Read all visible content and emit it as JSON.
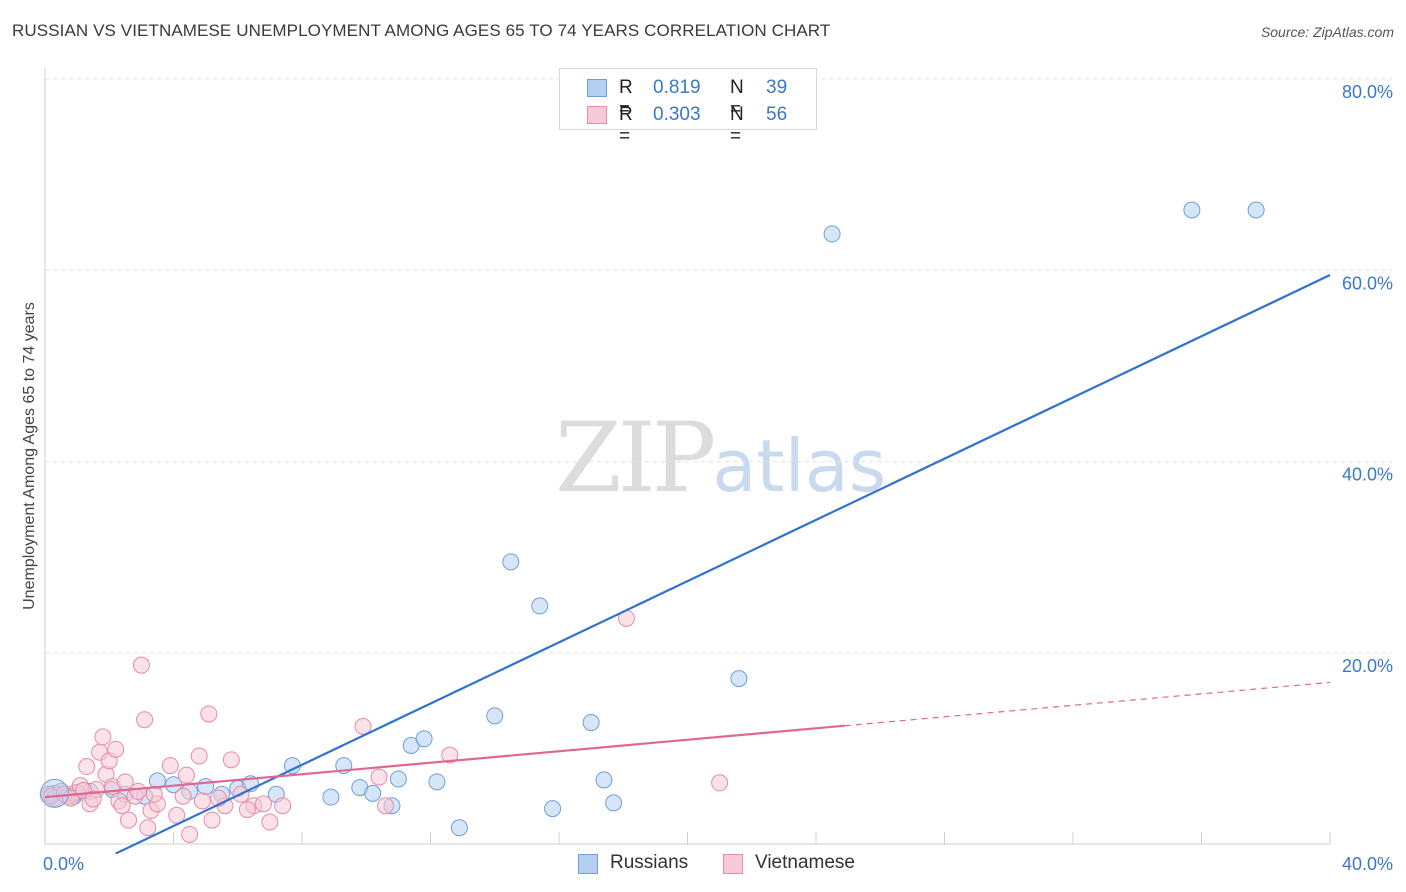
{
  "header": {
    "title": "RUSSIAN VS VIETNAMESE UNEMPLOYMENT AMONG AGES 65 TO 74 YEARS CORRELATION CHART",
    "source": "Source: ZipAtlas.com"
  },
  "watermark": {
    "zip": "ZIP",
    "atlas": "atlas"
  },
  "stats": [
    {
      "label": "R = ",
      "r": "0.819",
      "n_label": "N = ",
      "n": "39",
      "color": "#a8c8f0",
      "stroke": "#6f9fd8"
    },
    {
      "label": "R = ",
      "r": "0.303",
      "n_label": "N = ",
      "n": "56",
      "color": "#f8c0d0",
      "stroke": "#e88aa8"
    }
  ],
  "legend": {
    "russians": "Russians",
    "vietnamese": "Vietnamese"
  },
  "chart_data": {
    "type": "scatter",
    "title": "RUSSIAN VS VIETNAMESE UNEMPLOYMENT AMONG AGES 65 TO 74 YEARS CORRELATION CHART",
    "xlabel": "",
    "ylabel": "Unemployment Among Ages 65 to 74 years",
    "xlim": [
      0,
      40
    ],
    "ylim": [
      0,
      80
    ],
    "x_tick_labels": [
      "0.0%",
      "40.0%"
    ],
    "y_tick_labels": [
      "20.0%",
      "40.0%",
      "60.0%",
      "80.0%"
    ],
    "y_tick_values": [
      20,
      40,
      60,
      80
    ],
    "series": [
      {
        "name": "Russians",
        "color": "#6f9fd8",
        "fill": "#b5cff0",
        "trend_color": "#2f72d0",
        "trend": {
          "x0": 2.2,
          "y0": -1.0,
          "x1": 40.0,
          "y1": 59.5,
          "dashed_from": null
        },
        "points": [
          [
            0.2,
            5.2
          ],
          [
            0.5,
            5.5
          ],
          [
            0.9,
            5.0
          ],
          [
            1.4,
            5.5
          ],
          [
            2.1,
            5.7
          ],
          [
            2.5,
            5.2
          ],
          [
            3.1,
            5.0
          ],
          [
            3.5,
            6.6
          ],
          [
            4.0,
            6.2
          ],
          [
            4.5,
            5.5
          ],
          [
            5.0,
            6.0
          ],
          [
            5.5,
            5.2
          ],
          [
            6.0,
            5.8
          ],
          [
            6.4,
            6.3
          ],
          [
            7.2,
            5.2
          ],
          [
            7.7,
            8.2
          ],
          [
            8.9,
            4.9
          ],
          [
            9.3,
            8.2
          ],
          [
            9.8,
            5.9
          ],
          [
            10.2,
            5.3
          ],
          [
            10.8,
            4.0
          ],
          [
            11.0,
            6.8
          ],
          [
            11.4,
            10.3
          ],
          [
            11.8,
            11.0
          ],
          [
            12.2,
            6.5
          ],
          [
            12.9,
            1.7
          ],
          [
            14.0,
            13.4
          ],
          [
            14.5,
            29.5
          ],
          [
            15.4,
            24.9
          ],
          [
            15.8,
            3.7
          ],
          [
            17.0,
            12.7
          ],
          [
            17.4,
            6.7
          ],
          [
            17.7,
            4.3
          ],
          [
            21.6,
            17.3
          ],
          [
            24.5,
            63.8
          ],
          [
            35.7,
            66.3
          ],
          [
            37.7,
            66.3
          ],
          [
            0.3,
            5.3
          ],
          [
            1.0,
            5.4
          ]
        ]
      },
      {
        "name": "Vietnamese",
        "color": "#e88aa8",
        "fill": "#f8c9d6",
        "trend_color": "#e06890",
        "trend": {
          "x0": 0.0,
          "y0": 4.9,
          "x1": 40.0,
          "y1": 16.9,
          "dashed_from": 24.9
        },
        "points": [
          [
            0.1,
            5.2
          ],
          [
            0.3,
            4.8
          ],
          [
            0.5,
            5.5
          ],
          [
            0.7,
            5.0
          ],
          [
            0.9,
            5.3
          ],
          [
            1.1,
            6.1
          ],
          [
            1.3,
            8.1
          ],
          [
            1.4,
            4.2
          ],
          [
            1.6,
            5.7
          ],
          [
            1.7,
            9.6
          ],
          [
            1.8,
            11.2
          ],
          [
            1.9,
            7.3
          ],
          [
            2.0,
            8.7
          ],
          [
            2.1,
            6.0
          ],
          [
            2.2,
            9.9
          ],
          [
            2.3,
            4.5
          ],
          [
            2.4,
            4.0
          ],
          [
            2.6,
            2.5
          ],
          [
            2.8,
            5.0
          ],
          [
            2.9,
            5.5
          ],
          [
            3.0,
            18.7
          ],
          [
            3.1,
            13.0
          ],
          [
            3.2,
            1.7
          ],
          [
            3.3,
            3.5
          ],
          [
            3.5,
            4.2
          ],
          [
            3.9,
            8.2
          ],
          [
            4.1,
            3.0
          ],
          [
            4.3,
            5.0
          ],
          [
            4.4,
            7.2
          ],
          [
            4.5,
            1.0
          ],
          [
            4.8,
            9.2
          ],
          [
            4.9,
            4.5
          ],
          [
            5.1,
            13.6
          ],
          [
            5.2,
            2.5
          ],
          [
            5.6,
            4.0
          ],
          [
            5.8,
            8.8
          ],
          [
            6.1,
            5.2
          ],
          [
            6.5,
            4.0
          ],
          [
            6.8,
            4.2
          ],
          [
            7.0,
            2.3
          ],
          [
            9.9,
            12.3
          ],
          [
            10.4,
            7.0
          ],
          [
            10.6,
            4.0
          ],
          [
            12.6,
            9.3
          ],
          [
            18.1,
            23.6
          ],
          [
            21.0,
            6.4
          ],
          [
            0.2,
            5.0
          ],
          [
            0.6,
            5.2
          ],
          [
            0.8,
            4.8
          ],
          [
            1.2,
            5.6
          ],
          [
            1.5,
            4.7
          ],
          [
            2.5,
            6.5
          ],
          [
            3.4,
            5.2
          ],
          [
            5.4,
            4.8
          ],
          [
            6.3,
            3.6
          ],
          [
            7.4,
            4.0
          ]
        ]
      }
    ]
  }
}
